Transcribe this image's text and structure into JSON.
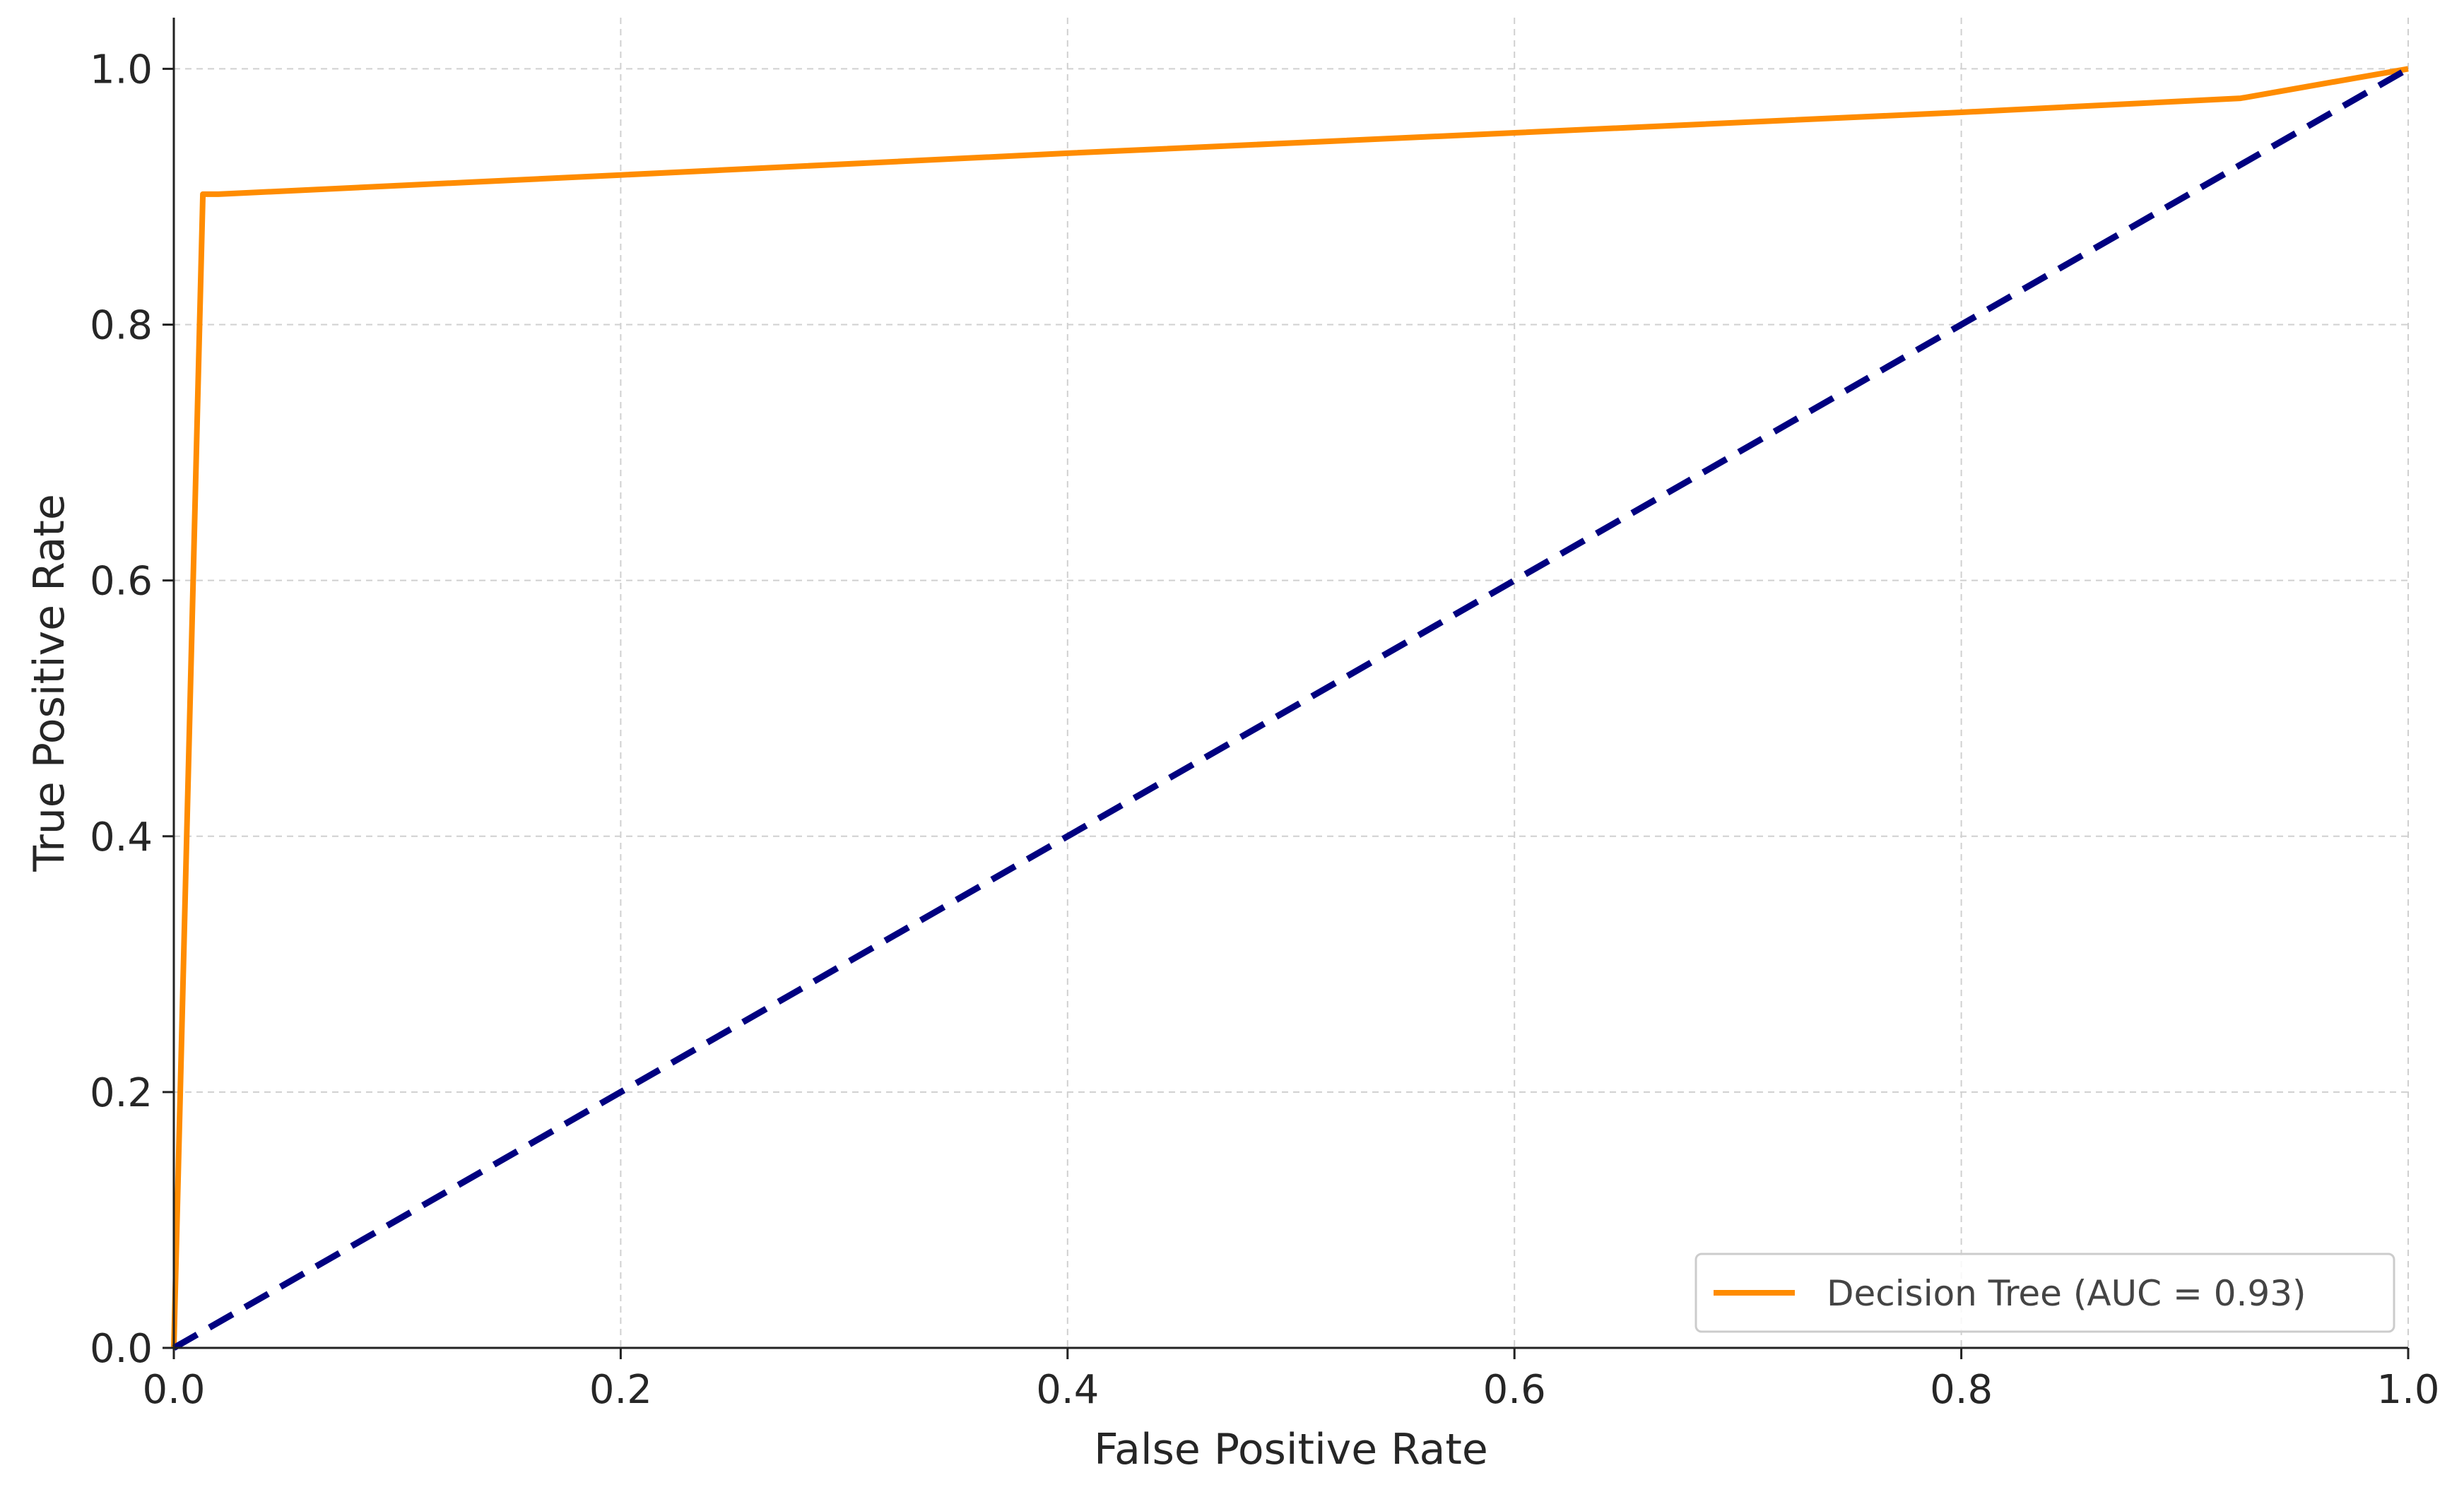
{
  "colors": {
    "roc_curve": "#ff8c00",
    "chance_line": "#000080",
    "grid": "#d0d0d0",
    "axis": "#222222",
    "background": "#ffffff"
  },
  "chart_data": {
    "type": "line",
    "title": "",
    "xlabel": "False Positive Rate",
    "ylabel": "True Positive Rate",
    "xlim": [
      0.0,
      1.0
    ],
    "ylim": [
      0.0,
      1.04
    ],
    "xticks": [
      0.0,
      0.2,
      0.4,
      0.6,
      0.8,
      1.0
    ],
    "yticks": [
      0.0,
      0.2,
      0.4,
      0.6,
      0.8,
      1.0
    ],
    "xtick_labels": [
      "0.0",
      "0.2",
      "0.4",
      "0.6",
      "0.8",
      "1.0"
    ],
    "ytick_labels": [
      "0.0",
      "0.2",
      "0.4",
      "0.6",
      "0.8",
      "1.0"
    ],
    "grid": true,
    "grid_style": "dashed",
    "legend_position": "lower-right",
    "series": [
      {
        "name": "Decision Tree (AUC = 0.93)",
        "style": "solid",
        "color": "#ff8c00",
        "x": [
          0.0,
          0.013,
          0.02,
          0.2,
          0.4,
          0.6,
          0.8,
          0.925,
          1.0
        ],
        "y": [
          0.0,
          0.902,
          0.902,
          0.917,
          0.934,
          0.95,
          0.966,
          0.977,
          1.0
        ]
      },
      {
        "name": "",
        "style": "dashed",
        "color": "#000080",
        "x": [
          0.0,
          1.0
        ],
        "y": [
          0.0,
          1.0
        ]
      }
    ]
  }
}
